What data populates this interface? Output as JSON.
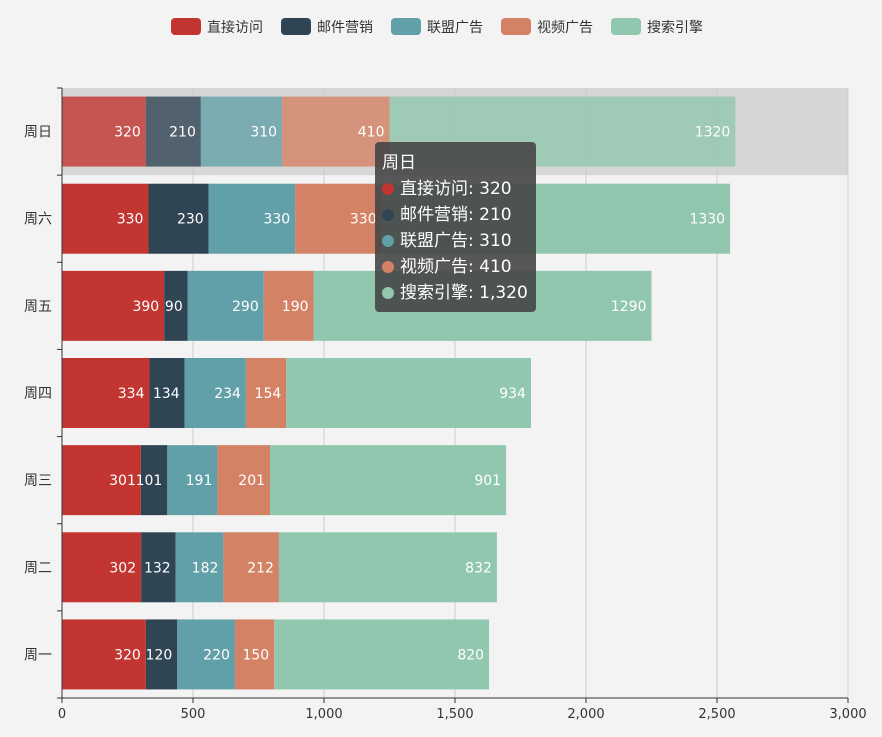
{
  "chart_data": {
    "type": "bar",
    "orientation": "horizontal",
    "stacked": true,
    "categories": [
      "周一",
      "周二",
      "周三",
      "周四",
      "周五",
      "周六",
      "周日"
    ],
    "series": [
      {
        "name": "直接访问",
        "color": "#c23531",
        "values": [
          320,
          302,
          301,
          334,
          390,
          330,
          320
        ]
      },
      {
        "name": "邮件营销",
        "color": "#2f4554",
        "values": [
          120,
          132,
          101,
          134,
          90,
          230,
          210
        ]
      },
      {
        "name": "联盟广告",
        "color": "#61a0a8",
        "values": [
          220,
          182,
          191,
          234,
          290,
          330,
          310
        ]
      },
      {
        "name": "视频广告",
        "color": "#d48265",
        "values": [
          150,
          212,
          201,
          154,
          190,
          330,
          410
        ]
      },
      {
        "name": "搜索引擎",
        "color": "#91c7ae",
        "values": [
          820,
          832,
          901,
          934,
          1290,
          1330,
          1320
        ]
      }
    ],
    "xlim": [
      0,
      3000
    ],
    "xticks": [
      0,
      500,
      1000,
      1500,
      2000,
      2500,
      3000
    ],
    "xtick_labels": [
      "0",
      "500",
      "1,000",
      "1,500",
      "2,000",
      "2,500",
      "3,000"
    ],
    "legend_position": "top",
    "grid": true,
    "highlighted_category": "周日"
  },
  "tooltip": {
    "title": "周日",
    "rows": [
      {
        "label": "直接访问: 320",
        "color": "#c23531"
      },
      {
        "label": "邮件营销: 210",
        "color": "#2f4554"
      },
      {
        "label": "联盟广告: 310",
        "color": "#61a0a8"
      },
      {
        "label": "视频广告: 410",
        "color": "#d48265"
      },
      {
        "label": "搜索引擎: 1,320",
        "color": "#91c7ae"
      }
    ]
  }
}
